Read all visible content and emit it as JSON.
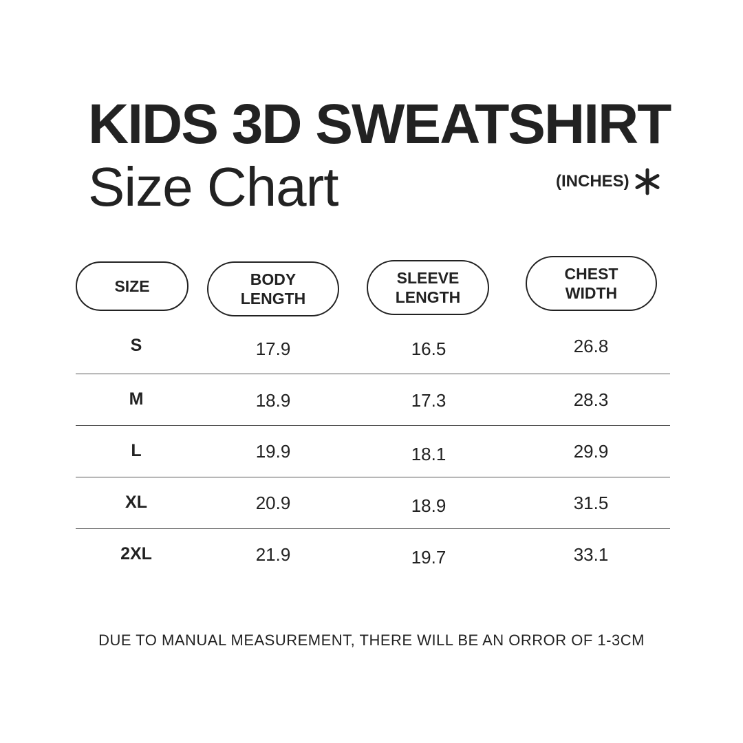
{
  "header": {
    "title": "KIDS 3D SWEATSHIRT",
    "subtitle": "Size Chart",
    "units": "(INCHES)"
  },
  "icons": {
    "units_mark": "asterisk-icon"
  },
  "table": {
    "columns": [
      "SIZE",
      "BODY\nLENGTH",
      "SLEEVE\nLENGTH",
      "CHEST\nWIDTH"
    ],
    "rows": [
      {
        "size": "S",
        "body_length": "17.9",
        "sleeve_length": "16.5",
        "chest_width": "26.8"
      },
      {
        "size": "M",
        "body_length": "18.9",
        "sleeve_length": "17.3",
        "chest_width": "28.3"
      },
      {
        "size": "L",
        "body_length": "19.9",
        "sleeve_length": "18.1",
        "chest_width": "29.9"
      },
      {
        "size": "XL",
        "body_length": "20.9",
        "sleeve_length": "18.9",
        "chest_width": "31.5"
      },
      {
        "size": "2XL",
        "body_length": "21.9",
        "sleeve_length": "19.7",
        "chest_width": "33.1"
      }
    ]
  },
  "footer": {
    "note": "DUE TO MANUAL MEASUREMENT, THERE WILL BE AN ORROR OF 1-3CM"
  },
  "colors": {
    "text": "#222222",
    "background": "#ffffff",
    "divider": "#555555"
  }
}
